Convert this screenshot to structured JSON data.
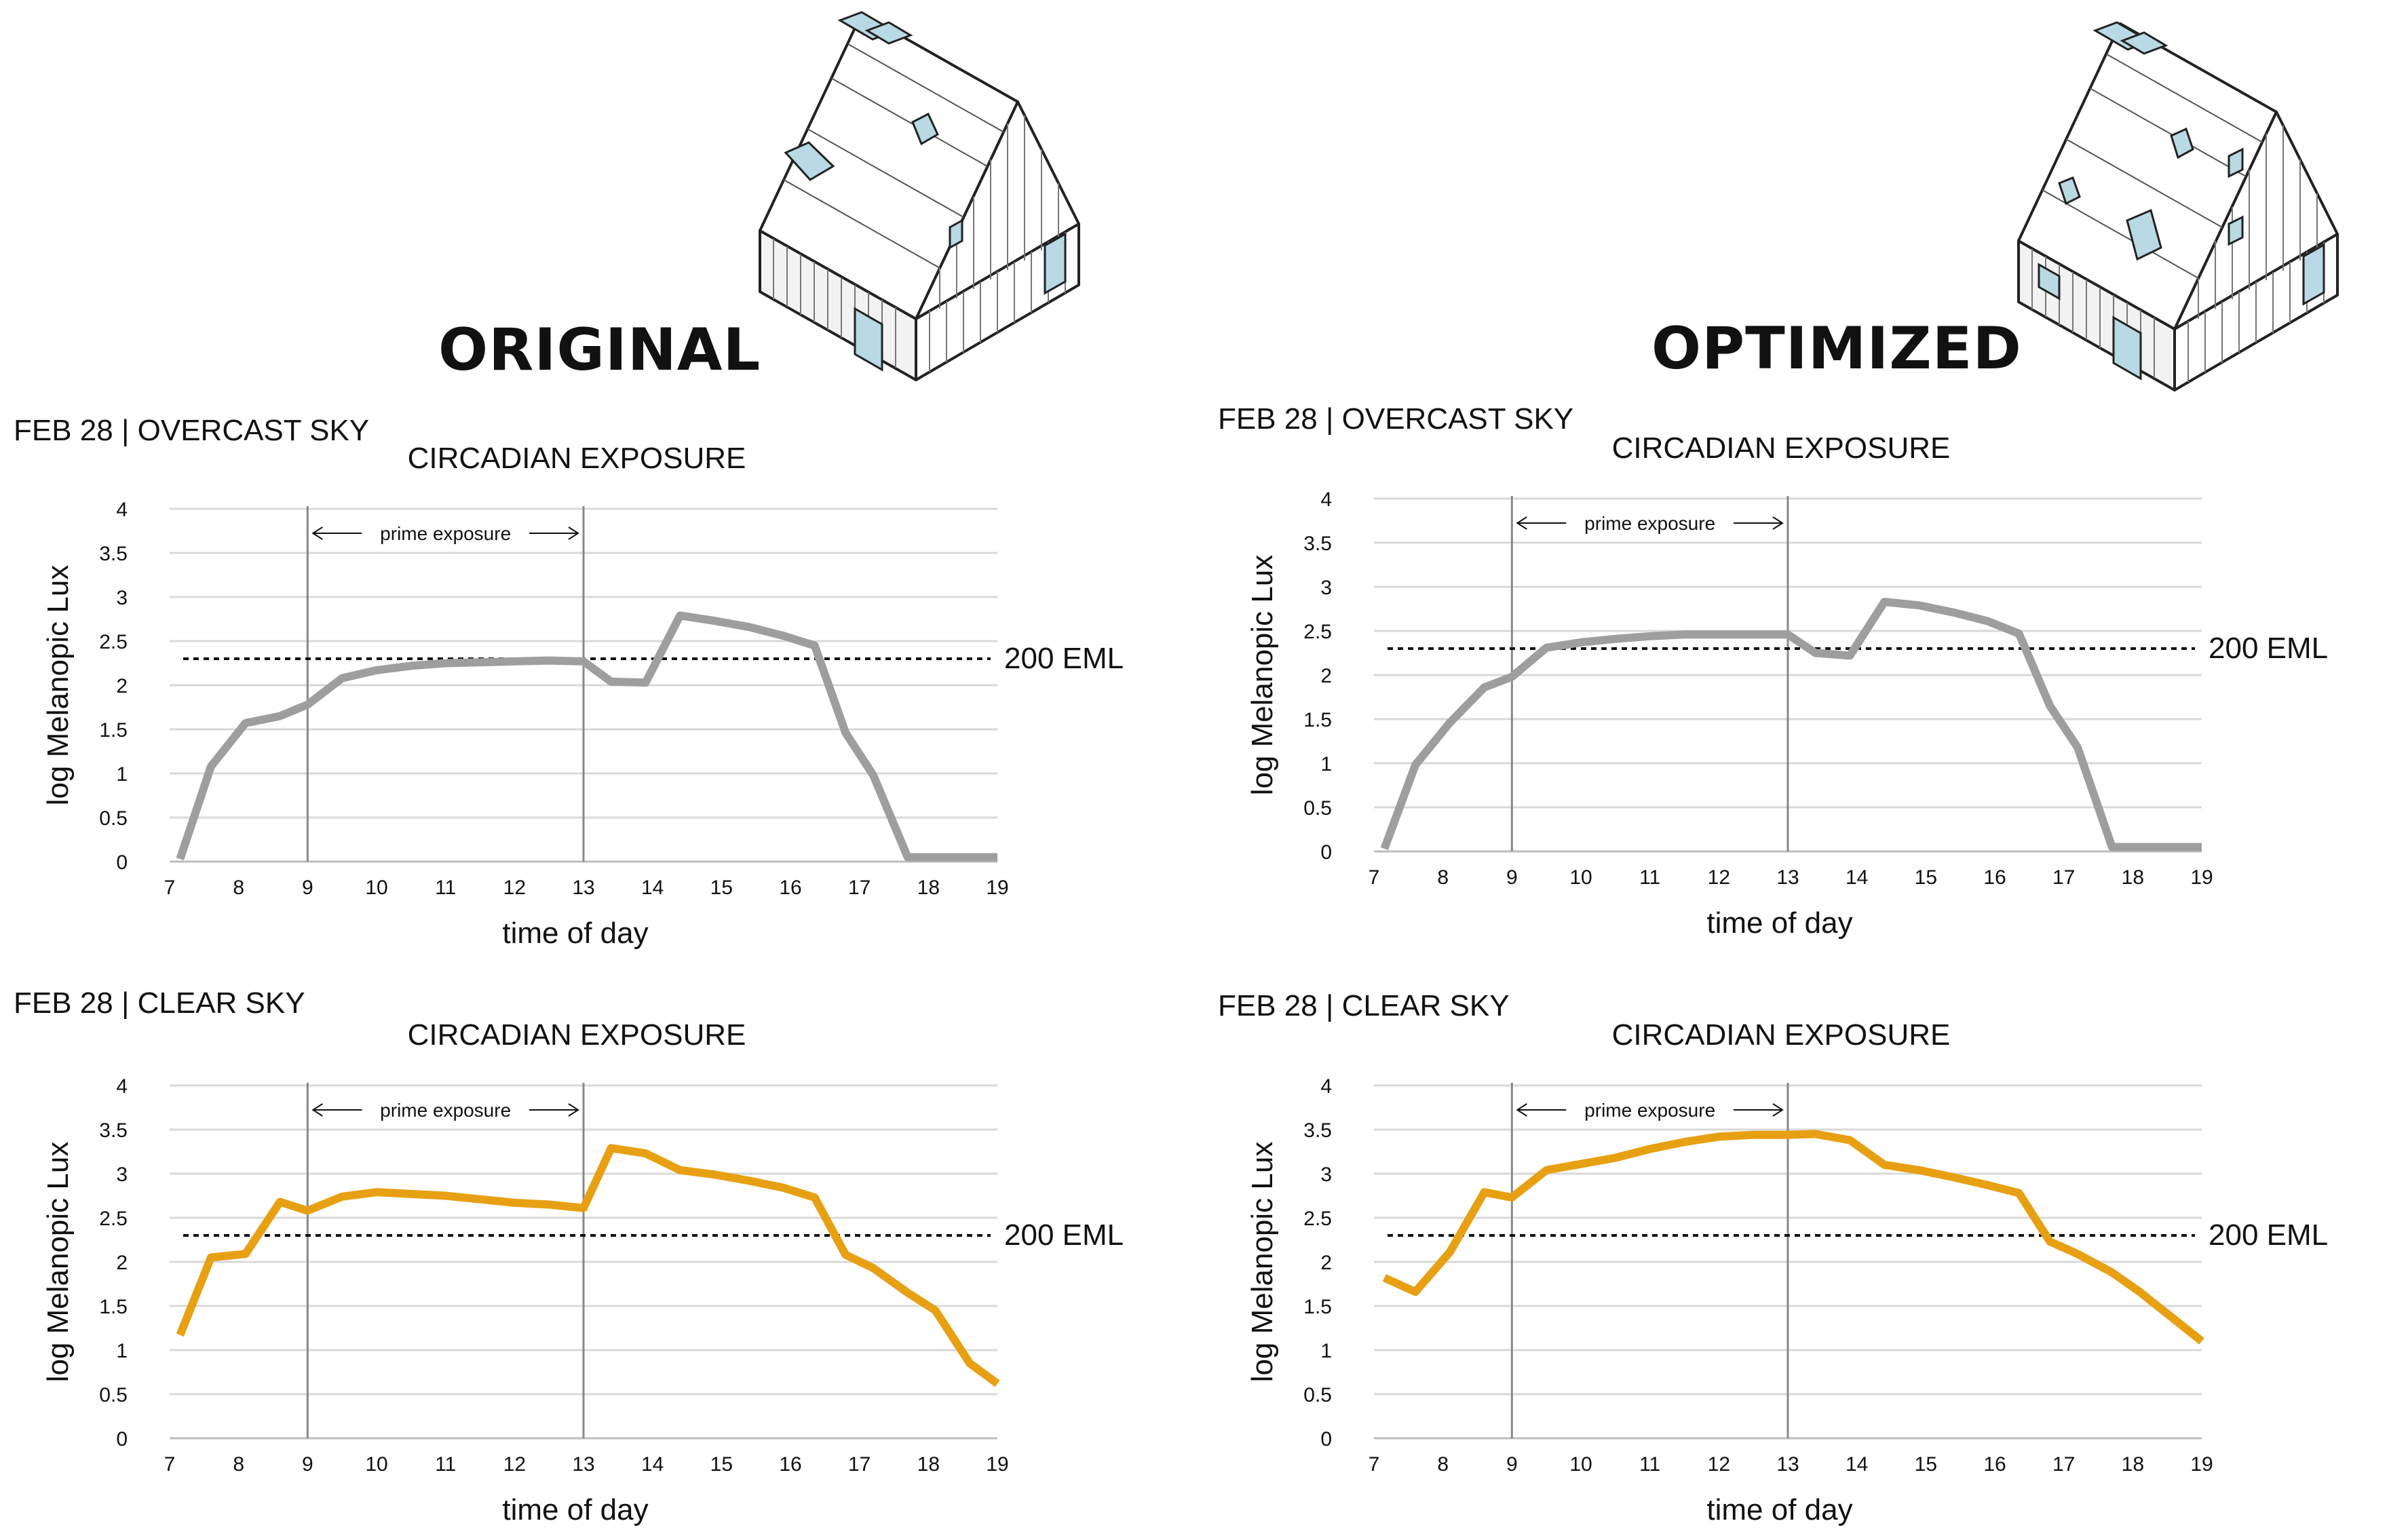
{
  "headings": {
    "original": "ORIGINAL",
    "optimized": "OPTIMIZED"
  },
  "colors": {
    "overcast_line": "#9e9e9e",
    "clear_line": "#e8a013",
    "grid": "#d9d9d9",
    "threshold": "#111111",
    "prime_marker": "#888888"
  },
  "chart_data": [
    {
      "id": "original-overcast",
      "column": "original",
      "type": "line",
      "panel_label": "FEB 28 | OVERCAST SKY",
      "title": "CIRCADIAN EXPOSURE",
      "xlabel": "time of day",
      "ylabel": "log Melanopic Lux",
      "xlim": [
        7,
        19
      ],
      "ylim": [
        0,
        4
      ],
      "xticks": [
        "7",
        "8",
        "9",
        "10",
        "11",
        "12",
        "13",
        "14",
        "15",
        "16",
        "17",
        "18",
        "19"
      ],
      "yticks": [
        "0",
        "0.5",
        "1",
        "1.5",
        "2",
        "2.5",
        "3",
        "3.5",
        "4"
      ],
      "threshold": {
        "value": 2.3,
        "label": "200 EML"
      },
      "prime_exposure": {
        "start": 9,
        "end": 13,
        "label": "prime exposure"
      },
      "series": [
        {
          "name": "overcast",
          "color": "#9e9e9e",
          "x": [
            7.15,
            7.6,
            8.1,
            8.6,
            9,
            9.5,
            10,
            10.5,
            11,
            11.5,
            12,
            12.5,
            13,
            13.4,
            13.9,
            14.4,
            14.9,
            15.4,
            15.9,
            16.35,
            16.8,
            17.2,
            17.7,
            18.1,
            18.6,
            19
          ],
          "y": [
            0.03,
            1.08,
            1.57,
            1.65,
            1.78,
            2.08,
            2.17,
            2.22,
            2.25,
            2.26,
            2.27,
            2.28,
            2.27,
            2.04,
            2.03,
            2.79,
            2.73,
            2.66,
            2.56,
            2.45,
            1.46,
            0.98,
            0.05,
            0.05,
            0.05,
            0.05
          ]
        }
      ]
    },
    {
      "id": "optimized-overcast",
      "column": "optimized",
      "type": "line",
      "panel_label": "FEB 28 | OVERCAST SKY",
      "title": "CIRCADIAN EXPOSURE",
      "xlabel": "time of day",
      "ylabel": "log Melanopic Lux",
      "xlim": [
        7,
        19
      ],
      "ylim": [
        0,
        4
      ],
      "xticks": [
        "7",
        "8",
        "9",
        "10",
        "11",
        "12",
        "13",
        "14",
        "15",
        "16",
        "17",
        "18",
        "19"
      ],
      "yticks": [
        "0",
        "0.5",
        "1",
        "1.5",
        "2",
        "2.5",
        "3",
        "3.5",
        "4"
      ],
      "threshold": {
        "value": 2.3,
        "label": "200 EML"
      },
      "prime_exposure": {
        "start": 9,
        "end": 13,
        "label": "prime exposure"
      },
      "series": [
        {
          "name": "overcast",
          "color": "#9e9e9e",
          "x": [
            7.15,
            7.6,
            8.1,
            8.6,
            9,
            9.5,
            10,
            10.5,
            11,
            11.5,
            12,
            12.5,
            13,
            13.4,
            13.9,
            14.4,
            14.9,
            15.4,
            15.9,
            16.35,
            16.8,
            17.2,
            17.7,
            18.1,
            18.6,
            19
          ],
          "y": [
            0.03,
            0.98,
            1.46,
            1.86,
            1.98,
            2.31,
            2.37,
            2.41,
            2.44,
            2.46,
            2.46,
            2.46,
            2.46,
            2.25,
            2.22,
            2.83,
            2.79,
            2.71,
            2.61,
            2.47,
            1.65,
            1.18,
            0.05,
            0.05,
            0.05,
            0.05
          ]
        }
      ]
    },
    {
      "id": "original-clear",
      "column": "original",
      "type": "line",
      "panel_label": "FEB 28 | CLEAR SKY",
      "title": "CIRCADIAN EXPOSURE",
      "xlabel": "time of day",
      "ylabel": "log Melanopic Lux",
      "xlim": [
        7,
        19
      ],
      "ylim": [
        0,
        4
      ],
      "xticks": [
        "7",
        "8",
        "9",
        "10",
        "11",
        "12",
        "13",
        "14",
        "15",
        "16",
        "17",
        "18",
        "19"
      ],
      "yticks": [
        "0",
        "0.5",
        "1",
        "1.5",
        "2",
        "2.5",
        "3",
        "3.5",
        "4"
      ],
      "threshold": {
        "value": 2.3,
        "label": "200 EML"
      },
      "prime_exposure": {
        "start": 9,
        "end": 13,
        "label": "prime exposure"
      },
      "series": [
        {
          "name": "clear",
          "color": "#e8a013",
          "x": [
            7.15,
            7.6,
            8.1,
            8.6,
            9,
            9.5,
            10,
            10.5,
            11,
            11.5,
            12,
            12.5,
            13,
            13.4,
            13.9,
            14.4,
            14.9,
            15.4,
            15.9,
            16.35,
            16.8,
            17.2,
            17.7,
            18.1,
            18.6,
            19
          ],
          "y": [
            1.17,
            2.05,
            2.09,
            2.68,
            2.58,
            2.74,
            2.79,
            2.77,
            2.75,
            2.71,
            2.67,
            2.65,
            2.61,
            3.29,
            3.23,
            3.04,
            2.99,
            2.92,
            2.84,
            2.73,
            2.08,
            1.93,
            1.65,
            1.45,
            0.85,
            0.62
          ]
        }
      ]
    },
    {
      "id": "optimized-clear",
      "column": "optimized",
      "type": "line",
      "panel_label": "FEB 28 | CLEAR SKY",
      "title": "CIRCADIAN EXPOSURE",
      "xlabel": "time of day",
      "ylabel": "log Melanopic Lux",
      "xlim": [
        7,
        19
      ],
      "ylim": [
        0,
        4
      ],
      "xticks": [
        "7",
        "8",
        "9",
        "10",
        "11",
        "12",
        "13",
        "14",
        "15",
        "16",
        "17",
        "18",
        "19"
      ],
      "yticks": [
        "0",
        "0.5",
        "1",
        "1.5",
        "2",
        "2.5",
        "3",
        "3.5",
        "4"
      ],
      "threshold": {
        "value": 2.3,
        "label": "200 EML"
      },
      "prime_exposure": {
        "start": 9,
        "end": 13,
        "label": "prime exposure"
      },
      "series": [
        {
          "name": "clear",
          "color": "#e8a013",
          "x": [
            7.15,
            7.6,
            8.1,
            8.6,
            9,
            9.5,
            10,
            10.5,
            11,
            11.5,
            12,
            12.5,
            13,
            13.4,
            13.9,
            14.4,
            14.9,
            15.4,
            15.9,
            16.35,
            16.8,
            17.2,
            17.7,
            18.1,
            18.6,
            19
          ],
          "y": [
            1.82,
            1.66,
            2.11,
            2.79,
            2.73,
            3.04,
            3.11,
            3.18,
            3.28,
            3.36,
            3.42,
            3.44,
            3.44,
            3.45,
            3.38,
            3.1,
            3.04,
            2.96,
            2.87,
            2.78,
            2.23,
            2.09,
            1.88,
            1.66,
            1.35,
            1.1
          ]
        }
      ]
    }
  ]
}
